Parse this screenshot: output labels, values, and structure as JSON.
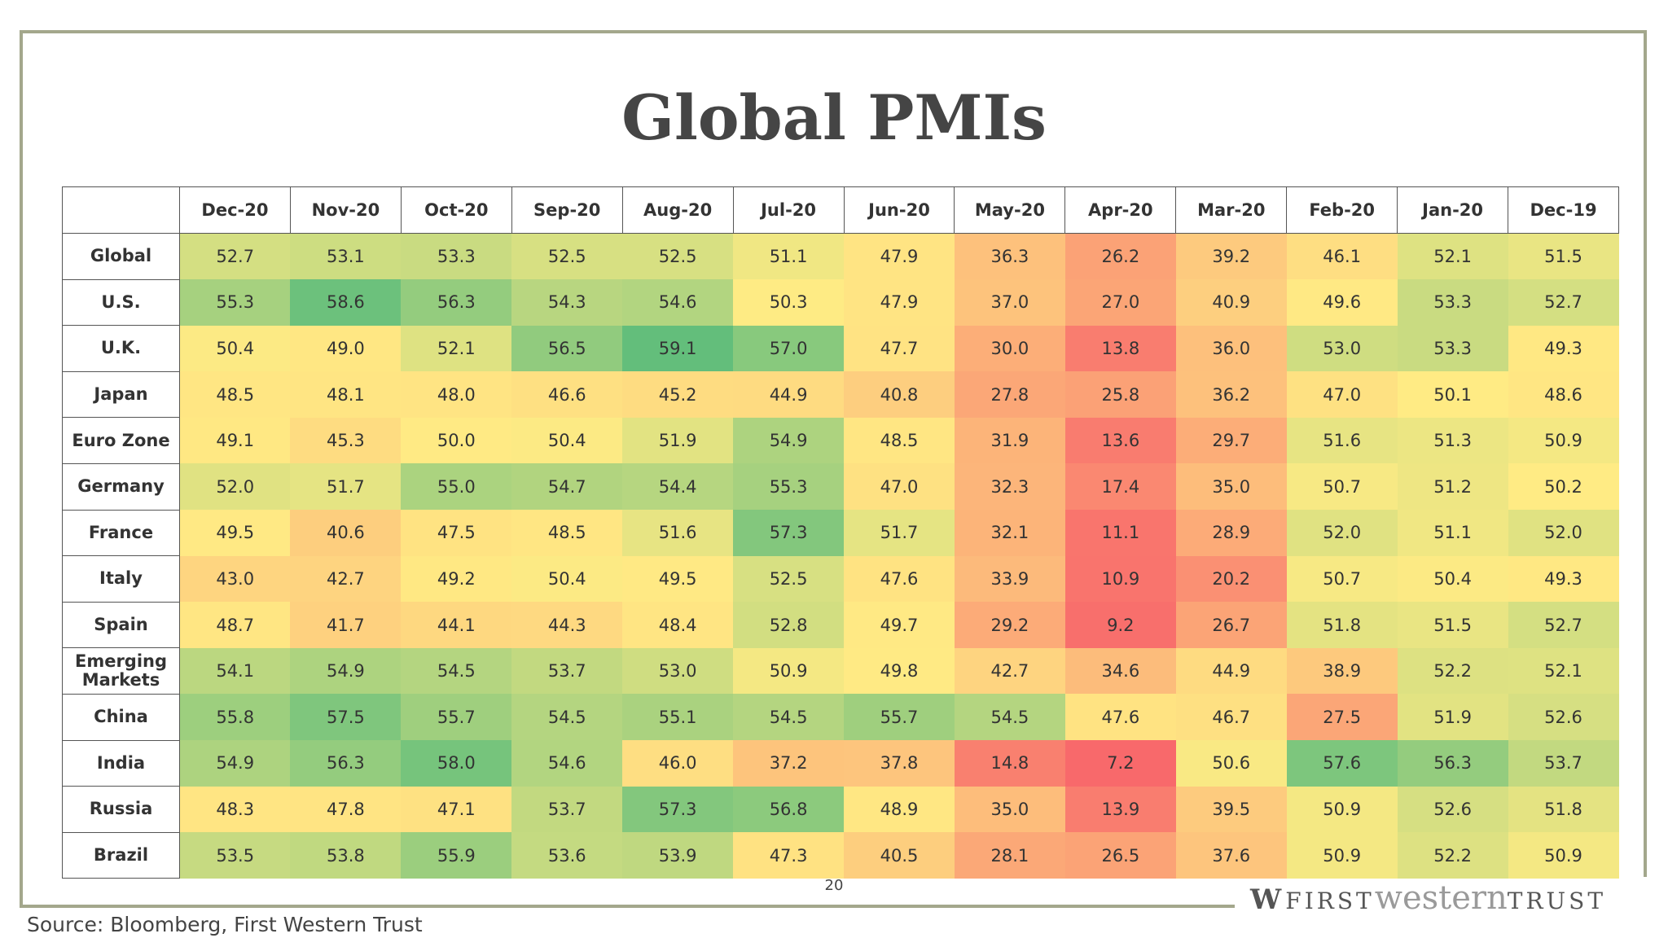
{
  "title": "Global PMIs",
  "table": {
    "columns": [
      "Dec-20",
      "Nov-20",
      "Oct-20",
      "Sep-20",
      "Aug-20",
      "Jul-20",
      "Jun-20",
      "May-20",
      "Apr-20",
      "Mar-20",
      "Feb-20",
      "Jan-20",
      "Dec-19"
    ],
    "rows": [
      {
        "label": "Global",
        "values": [
          "52.7",
          "53.1",
          "53.3",
          "52.5",
          "52.5",
          "51.1",
          "47.9",
          "36.3",
          "26.2",
          "39.2",
          "46.1",
          "52.1",
          "51.5"
        ]
      },
      {
        "label": "U.S.",
        "values": [
          "55.3",
          "58.6",
          "56.3",
          "54.3",
          "54.6",
          "50.3",
          "47.9",
          "37.0",
          "27.0",
          "40.9",
          "49.6",
          "53.3",
          "52.7"
        ]
      },
      {
        "label": "U.K.",
        "values": [
          "50.4",
          "49.0",
          "52.1",
          "56.5",
          "59.1",
          "57.0",
          "47.7",
          "30.0",
          "13.8",
          "36.0",
          "53.0",
          "53.3",
          "49.3"
        ]
      },
      {
        "label": "Japan",
        "values": [
          "48.5",
          "48.1",
          "48.0",
          "46.6",
          "45.2",
          "44.9",
          "40.8",
          "27.8",
          "25.8",
          "36.2",
          "47.0",
          "50.1",
          "48.6"
        ]
      },
      {
        "label": "Euro Zone",
        "values": [
          "49.1",
          "45.3",
          "50.0",
          "50.4",
          "51.9",
          "54.9",
          "48.5",
          "31.9",
          "13.6",
          "29.7",
          "51.6",
          "51.3",
          "50.9"
        ]
      },
      {
        "label": "Germany",
        "values": [
          "52.0",
          "51.7",
          "55.0",
          "54.7",
          "54.4",
          "55.3",
          "47.0",
          "32.3",
          "17.4",
          "35.0",
          "50.7",
          "51.2",
          "50.2"
        ]
      },
      {
        "label": "France",
        "values": [
          "49.5",
          "40.6",
          "47.5",
          "48.5",
          "51.6",
          "57.3",
          "51.7",
          "32.1",
          "11.1",
          "28.9",
          "52.0",
          "51.1",
          "52.0"
        ]
      },
      {
        "label": "Italy",
        "values": [
          "43.0",
          "42.7",
          "49.2",
          "50.4",
          "49.5",
          "52.5",
          "47.6",
          "33.9",
          "10.9",
          "20.2",
          "50.7",
          "50.4",
          "49.3"
        ]
      },
      {
        "label": "Spain",
        "values": [
          "48.7",
          "41.7",
          "44.1",
          "44.3",
          "48.4",
          "52.8",
          "49.7",
          "29.2",
          "9.2",
          "26.7",
          "51.8",
          "51.5",
          "52.7"
        ]
      },
      {
        "label": "Emerging Markets",
        "values": [
          "54.1",
          "54.9",
          "54.5",
          "53.7",
          "53.0",
          "50.9",
          "49.8",
          "42.7",
          "34.6",
          "44.9",
          "38.9",
          "52.2",
          "52.1"
        ]
      },
      {
        "label": "China",
        "values": [
          "55.8",
          "57.5",
          "55.7",
          "54.5",
          "55.1",
          "54.5",
          "55.7",
          "54.5",
          "47.6",
          "46.7",
          "27.5",
          "51.9",
          "52.6"
        ]
      },
      {
        "label": "India",
        "values": [
          "54.9",
          "56.3",
          "58.0",
          "54.6",
          "46.0",
          "37.2",
          "37.8",
          "14.8",
          "7.2",
          "50.6",
          "57.6",
          "56.3",
          "53.7"
        ]
      },
      {
        "label": "Russia",
        "values": [
          "48.3",
          "47.8",
          "47.1",
          "53.7",
          "57.3",
          "56.8",
          "48.9",
          "35.0",
          "13.9",
          "39.5",
          "50.9",
          "52.6",
          "51.8"
        ]
      },
      {
        "label": "Brazil",
        "values": [
          "53.5",
          "53.8",
          "55.9",
          "53.6",
          "53.9",
          "47.3",
          "40.5",
          "28.1",
          "26.5",
          "37.6",
          "50.9",
          "52.2",
          "50.9"
        ]
      }
    ],
    "color_scale": {
      "low": "#f8696b",
      "mid": "#ffeb84",
      "high": "#63be7b"
    }
  },
  "page_number": "20",
  "source": "Source: Bloomberg, First Western Trust",
  "logo": {
    "first": "FIRST",
    "western": "western",
    "trust": "TRUST"
  }
}
